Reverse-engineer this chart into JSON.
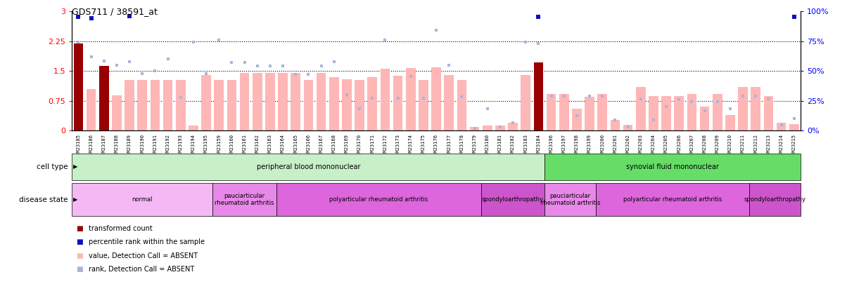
{
  "title": "GDS711 / 38591_at",
  "samples": [
    "GSM23185",
    "GSM23186",
    "GSM23187",
    "GSM23188",
    "GSM23189",
    "GSM23190",
    "GSM23191",
    "GSM23192",
    "GSM23193",
    "GSM23194",
    "GSM23195",
    "GSM23159",
    "GSM23160",
    "GSM23161",
    "GSM23162",
    "GSM23163",
    "GSM23164",
    "GSM23165",
    "GSM23166",
    "GSM23167",
    "GSM23168",
    "GSM23169",
    "GSM23170",
    "GSM23171",
    "GSM23172",
    "GSM23173",
    "GSM23174",
    "GSM23175",
    "GSM23176",
    "GSM23177",
    "GSM23178",
    "GSM23179",
    "GSM23180",
    "GSM23181",
    "GSM23182",
    "GSM23183",
    "GSM23184",
    "GSM23196",
    "GSM23197",
    "GSM23198",
    "GSM23199",
    "GSM23200",
    "GSM23201",
    "GSM23202",
    "GSM23203",
    "GSM23204",
    "GSM23205",
    "GSM23206",
    "GSM23207",
    "GSM23208",
    "GSM23209",
    "GSM23210",
    "GSM23211",
    "GSM23212",
    "GSM23213",
    "GSM23214",
    "GSM23215"
  ],
  "bar_values": [
    2.2,
    1.05,
    1.63,
    0.88,
    1.27,
    1.27,
    1.27,
    1.27,
    1.27,
    0.13,
    1.4,
    1.27,
    1.27,
    1.45,
    1.45,
    1.45,
    1.45,
    1.45,
    1.27,
    1.45,
    1.35,
    1.3,
    1.27,
    1.35,
    1.55,
    1.38,
    1.58,
    1.27,
    1.6,
    1.4,
    1.27,
    0.1,
    0.13,
    0.13,
    0.2,
    1.4,
    1.72,
    0.93,
    0.93,
    0.55,
    0.85,
    0.92,
    0.27,
    0.14,
    1.1,
    0.87,
    0.87,
    0.87,
    0.93,
    0.6,
    0.92,
    0.4,
    1.1,
    1.1,
    0.87,
    0.2,
    0.17
  ],
  "bar_is_dark": [
    true,
    false,
    true,
    false,
    false,
    false,
    false,
    false,
    false,
    false,
    false,
    false,
    false,
    false,
    false,
    false,
    false,
    false,
    false,
    false,
    false,
    false,
    false,
    false,
    false,
    false,
    false,
    false,
    false,
    false,
    false,
    false,
    false,
    false,
    false,
    false,
    true,
    false,
    false,
    false,
    false,
    false,
    false,
    false,
    false,
    false,
    false,
    false,
    false,
    false,
    false,
    false,
    false,
    false,
    false,
    false,
    false
  ],
  "rank_absent_values": [
    2.23,
    1.85,
    1.75,
    1.65,
    1.73,
    1.43,
    1.5,
    1.8,
    0.83,
    2.22,
    1.43,
    2.28,
    1.72,
    1.72,
    1.63,
    1.63,
    1.63,
    1.42,
    1.42,
    1.62,
    1.73,
    0.9,
    0.55,
    0.82,
    2.28,
    0.82,
    1.37,
    0.82,
    2.52,
    1.65,
    0.85,
    0.05,
    0.55,
    0.1,
    0.2,
    2.22,
    2.2,
    0.87,
    0.87,
    0.37,
    0.87,
    0.87,
    0.27,
    0.1,
    0.8,
    0.27,
    0.6,
    0.78,
    0.73,
    0.5,
    0.73,
    0.55,
    0.87,
    0.87,
    0.8,
    0.15,
    0.3
  ],
  "blue_rank_values": [
    2.87,
    2.82,
    null,
    null,
    2.88,
    null,
    null,
    null,
    null,
    null,
    null,
    null,
    null,
    null,
    null,
    null,
    null,
    null,
    null,
    null,
    null,
    null,
    null,
    null,
    null,
    null,
    null,
    null,
    null,
    null,
    null,
    null,
    null,
    null,
    null,
    null,
    2.87,
    null,
    null,
    null,
    null,
    null,
    null,
    null,
    null,
    null,
    null,
    null,
    null,
    null,
    null,
    null,
    null,
    null,
    null,
    null,
    2.87
  ],
  "yticks_left": [
    0,
    0.75,
    1.5,
    2.25,
    3.0
  ],
  "yticks_left_labels": [
    "0",
    "0.75",
    "1.5",
    "2.25",
    "3"
  ],
  "yticks_right": [
    0,
    0.75,
    1.5,
    2.25,
    3.0
  ],
  "yticks_right_labels": [
    "0%",
    "25%",
    "50%",
    "75%",
    "100%"
  ],
  "hlines": [
    0.75,
    1.5,
    2.25
  ],
  "bar_color_light": "#ffb6b6",
  "bar_color_dark": "#990000",
  "rank_color_absent": "#aab4d8",
  "rank_color_present": "#1111bb",
  "cell_type_bands": [
    {
      "label": "peripheral blood mononuclear",
      "start": 0,
      "end": 36,
      "color": "#c8f0c8"
    },
    {
      "label": "synovial fluid mononuclear",
      "start": 37,
      "end": 56,
      "color": "#66dd66"
    }
  ],
  "disease_bands": [
    {
      "label": "normal",
      "start": 0,
      "end": 10,
      "color": "#f4b8f4"
    },
    {
      "label": "pauciarticular\nrheumatoid arthritis",
      "start": 11,
      "end": 15,
      "color": "#e888e8"
    },
    {
      "label": "polyarticular rheumatoid arthritis",
      "start": 16,
      "end": 31,
      "color": "#dd66dd"
    },
    {
      "label": "spondyloarthropathy",
      "start": 32,
      "end": 36,
      "color": "#cc55cc"
    },
    {
      "label": "pauciarticular\nrheumatoid arthritis",
      "start": 37,
      "end": 40,
      "color": "#e888e8"
    },
    {
      "label": "polyarticular rheumatoid arthritis",
      "start": 41,
      "end": 52,
      "color": "#dd66dd"
    },
    {
      "label": "spondyloarthropathy",
      "start": 53,
      "end": 56,
      "color": "#cc55cc"
    }
  ],
  "legend_items": [
    {
      "color": "#990000",
      "label": "transformed count"
    },
    {
      "color": "#1111bb",
      "label": "percentile rank within the sample"
    },
    {
      "color": "#ffb6b6",
      "label": "value, Detection Call = ABSENT"
    },
    {
      "color": "#aab4d8",
      "label": "rank, Detection Call = ABSENT"
    }
  ],
  "fig_width": 12.04,
  "fig_height": 4.05,
  "dpi": 100
}
